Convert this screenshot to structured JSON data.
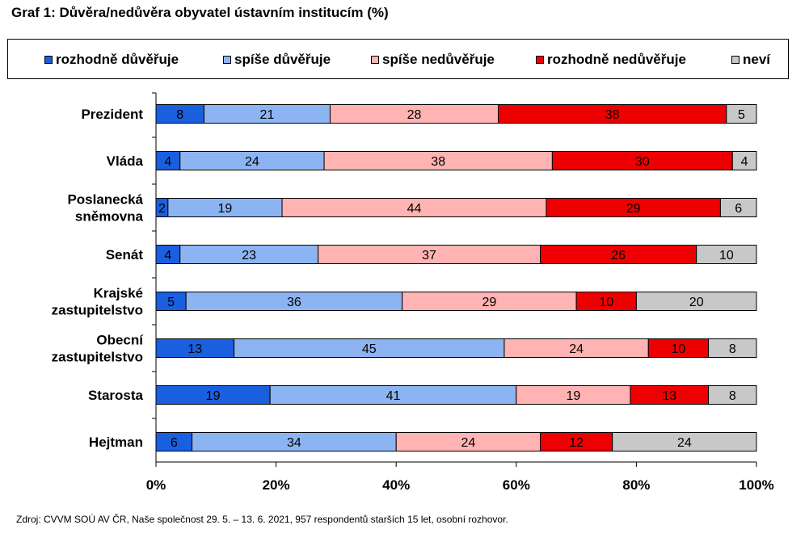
{
  "title": "Graf 1: Důvěra/nedůvěra obyvatel ústavním institucím (%)",
  "legend": [
    {
      "label": "rozhodně důvěřuje",
      "color": "#1a5fe0"
    },
    {
      "label": "spíše důvěřuje",
      "color": "#8db4f2"
    },
    {
      "label": "spíše nedůvěřuje",
      "color": "#ffb3b3"
    },
    {
      "label": "rozhodně nedůvěřuje",
      "color": "#ee0000"
    },
    {
      "label": "neví",
      "color": "#c8c8c8"
    }
  ],
  "chart_data": {
    "type": "bar",
    "orientation": "horizontal",
    "stacked": true,
    "categories": [
      [
        "Prezident"
      ],
      [
        "Vláda"
      ],
      [
        "Poslanecká",
        "sněmovna"
      ],
      [
        "Senát"
      ],
      [
        "Krajské",
        "zastupitelstvo"
      ],
      [
        "Obecní",
        "zastupitelstvo"
      ],
      [
        "Starosta"
      ],
      [
        "Hejtman"
      ]
    ],
    "series": [
      {
        "name": "rozhodně důvěřuje",
        "color": "#1a5fe0",
        "values": [
          8,
          4,
          2,
          4,
          5,
          13,
          19,
          6
        ]
      },
      {
        "name": "spíše důvěřuje",
        "color": "#8db4f2",
        "values": [
          21,
          24,
          19,
          23,
          36,
          45,
          41,
          34
        ]
      },
      {
        "name": "spíše nedůvěřuje",
        "color": "#ffb3b3",
        "values": [
          28,
          38,
          44,
          37,
          29,
          24,
          19,
          24
        ]
      },
      {
        "name": "rozhodně nedůvěřuje",
        "color": "#ee0000",
        "values": [
          38,
          30,
          29,
          26,
          10,
          10,
          13,
          12
        ]
      },
      {
        "name": "neví",
        "color": "#c8c8c8",
        "values": [
          5,
          4,
          6,
          10,
          20,
          8,
          8,
          24
        ]
      }
    ],
    "x_ticks": [
      "0%",
      "20%",
      "40%",
      "60%",
      "80%",
      "100%"
    ],
    "xlim": [
      0,
      100
    ],
    "legend_position": "top",
    "grid": false
  },
  "source": "Zdroj: CVVM SOÚ AV ČR, Naše společnost 29.  5. – 13. 6. 2021, 957 respondentů starších 15 let, osobní rozhovor."
}
